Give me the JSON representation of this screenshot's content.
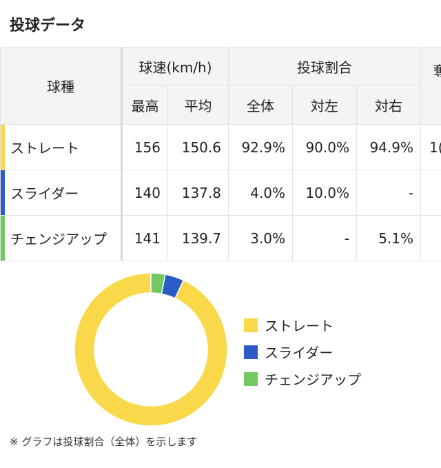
{
  "section": {
    "title": "投球データ"
  },
  "table": {
    "header": {
      "pitch_type": "球種",
      "speed_group": "球速(km/h)",
      "ratio_group": "投球割合",
      "extra_group": "奪",
      "speed_max": "最高",
      "speed_avg": "平均",
      "ratio_all": "全体",
      "ratio_vs_left": "対左",
      "ratio_vs_right": "対右"
    },
    "rows": [
      {
        "name": "ストレート",
        "color": "#f9d84a",
        "max": "156",
        "avg": "150.6",
        "all": "92.9%",
        "vs_left": "90.0%",
        "vs_right": "94.9%",
        "extra": "1("
      },
      {
        "name": "スライダー",
        "color": "#2a5bc7",
        "max": "140",
        "avg": "137.8",
        "all": "4.0%",
        "vs_left": "10.0%",
        "vs_right": "-",
        "extra": ""
      },
      {
        "name": "チェンジアップ",
        "color": "#74c863",
        "max": "141",
        "avg": "139.7",
        "all": "3.0%",
        "vs_left": "-",
        "vs_right": "5.1%",
        "extra": ""
      }
    ]
  },
  "chart_data": {
    "type": "pie",
    "categories": [
      "ストレート",
      "スライダー",
      "チェンジアップ"
    ],
    "values": [
      92.9,
      4.0,
      3.0
    ],
    "colors": [
      "#f9d84a",
      "#2a5bc7",
      "#74c863"
    ],
    "donut": true,
    "legend_position": "right"
  },
  "legend": [
    {
      "label": "ストレート",
      "color": "#f9d84a"
    },
    {
      "label": "スライダー",
      "color": "#2a5bc7"
    },
    {
      "label": "チェンジアップ",
      "color": "#74c863"
    }
  ],
  "note": "※ グラフは投球割合（全体）を示します"
}
